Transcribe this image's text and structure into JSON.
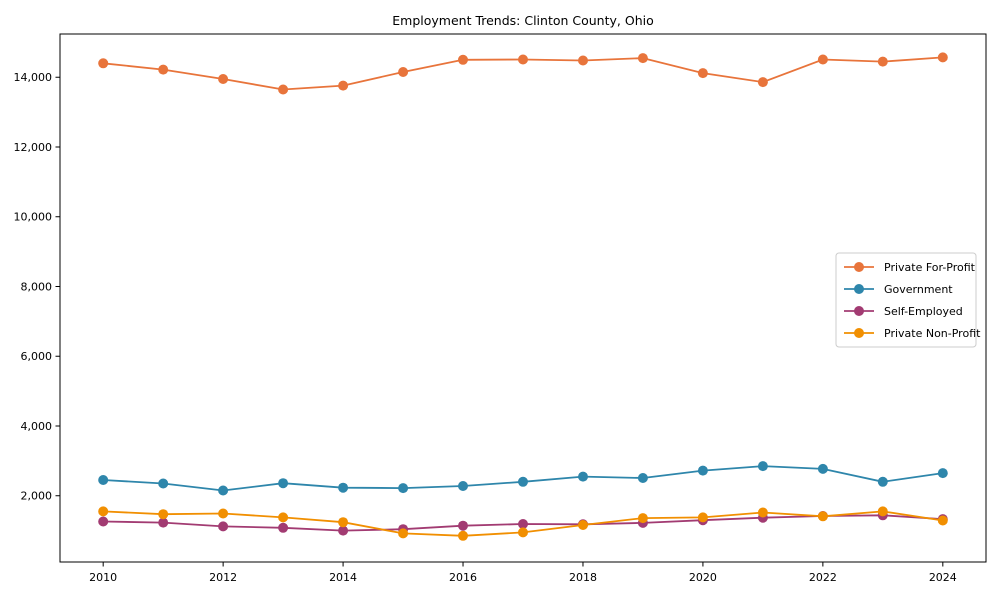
{
  "chart_data": {
    "type": "line",
    "title": "Employment Trends: Clinton County, Ohio",
    "xlabel": "",
    "ylabel": "",
    "x": [
      2010,
      2011,
      2012,
      2013,
      2014,
      2015,
      2016,
      2017,
      2018,
      2019,
      2020,
      2021,
      2022,
      2023,
      2024
    ],
    "series": [
      {
        "name": "Private For-Profit",
        "color": "#E8743B",
        "values": [
          14400,
          14220,
          13950,
          13650,
          13760,
          14150,
          14500,
          14510,
          14480,
          14550,
          14120,
          13860,
          14510,
          14450,
          14570
        ]
      },
      {
        "name": "Government",
        "color": "#2E86AB",
        "values": [
          2450,
          2350,
          2150,
          2360,
          2230,
          2220,
          2280,
          2400,
          2550,
          2510,
          2720,
          2850,
          2770,
          2400,
          2650
        ]
      },
      {
        "name": "Self-Employed",
        "color": "#A23B72",
        "values": [
          1260,
          1230,
          1120,
          1080,
          1000,
          1040,
          1140,
          1190,
          1180,
          1220,
          1300,
          1370,
          1420,
          1440,
          1330
        ]
      },
      {
        "name": "Private Non-Profit",
        "color": "#F18F01",
        "values": [
          1550,
          1470,
          1490,
          1380,
          1240,
          920,
          850,
          950,
          1160,
          1360,
          1380,
          1520,
          1410,
          1550,
          1290
        ]
      }
    ],
    "xlim": [
      2009.28,
      2024.72
    ],
    "ylim": [
      100,
      15240
    ],
    "xticks": [
      2010,
      2012,
      2014,
      2016,
      2018,
      2020,
      2022,
      2024
    ],
    "yticks": [
      2000,
      4000,
      6000,
      8000,
      10000,
      12000,
      14000
    ],
    "grid": false,
    "legend_position": "center right",
    "legend_entries": [
      "Private For-Profit",
      "Government",
      "Self-Employed",
      "Private Non-Profit"
    ],
    "axis_color": "#000000",
    "legend_border_color": "#cccccc",
    "legend_background": "#ffffff",
    "marker": "circle"
  }
}
